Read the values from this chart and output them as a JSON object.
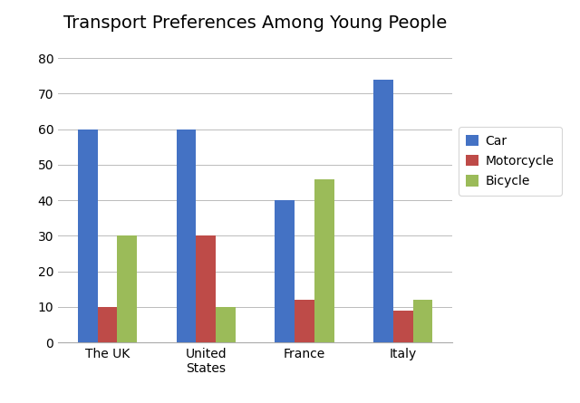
{
  "title": "Transport Preferences Among Young People",
  "categories": [
    "The UK",
    "United\nStates",
    "France",
    "Italy"
  ],
  "series": {
    "Car": [
      60,
      60,
      40,
      74
    ],
    "Motorcycle": [
      10,
      30,
      12,
      9
    ],
    "Bicycle": [
      30,
      10,
      46,
      12
    ]
  },
  "colors": {
    "Car": "#4472C4",
    "Motorcycle": "#BE4B48",
    "Bicycle": "#9BBB59"
  },
  "ylim": [
    0,
    85
  ],
  "yticks": [
    0,
    10,
    20,
    30,
    40,
    50,
    60,
    70,
    80
  ],
  "legend_labels": [
    "Car",
    "Motorcycle",
    "Bicycle"
  ],
  "title_fontsize": 14,
  "tick_fontsize": 10,
  "background_color": "#FFFFFF",
  "bar_width": 0.2,
  "grid": true
}
